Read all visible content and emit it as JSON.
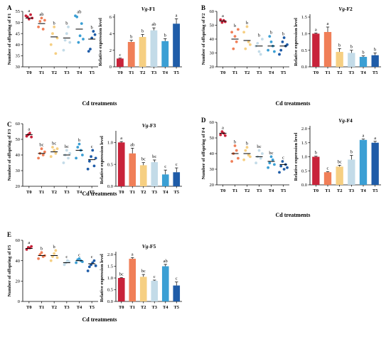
{
  "figure": {
    "palette": [
      "#c8233a",
      "#f07f58",
      "#f6cf82",
      "#c3dbe8",
      "#3b9fd4",
      "#1f5ca8"
    ],
    "panels": [
      {
        "label": "A",
        "x_title": "Cd treatments",
        "scatter": {
          "ylabel": "Number of offspring of F1",
          "ylim": [
            30,
            55
          ],
          "yticks": [
            30,
            35,
            40,
            45,
            50,
            55
          ],
          "categories": [
            "T0",
            "T1",
            "T2",
            "T3",
            "T4",
            "T5"
          ],
          "means": [
            52,
            49.5,
            43.5,
            43,
            47,
            42.5
          ],
          "points": [
            [
              53,
              52.5,
              51.5,
              53.5,
              52
            ],
            [
              48,
              50.5,
              52,
              47,
              51
            ],
            [
              40,
              45,
              48,
              36,
              43
            ],
            [
              37.5,
              42,
              45,
              48,
              41
            ],
            [
              53,
              52.5,
              41,
              44,
              49.5,
              42.5
            ],
            [
              37,
              38,
              43,
              46,
              44.5
            ]
          ],
          "sig": [
            "a",
            "ab",
            "b",
            "b",
            "ab",
            "b"
          ]
        },
        "bar": {
          "title_gene": "Vg",
          "title_suffix": "-F1",
          "ylabel": "Relative expression level",
          "ylim": [
            0,
            6
          ],
          "yticks": [
            0,
            2,
            4,
            6
          ],
          "categories": [
            "T0",
            "T1",
            "T2",
            "T3",
            "T4",
            "T5"
          ],
          "values": [
            1.0,
            3.0,
            3.6,
            4.4,
            3.1,
            5.2
          ],
          "errors": [
            0.05,
            0.2,
            0.3,
            0.3,
            0.3,
            0.6
          ],
          "sig": [
            "c",
            "b",
            "b",
            "ab",
            "b",
            "a"
          ]
        }
      },
      {
        "label": "B",
        "x_title": "Cd treatments",
        "scatter": {
          "ylabel": "Number of offspring of F2",
          "ylim": [
            20,
            60
          ],
          "yticks": [
            20,
            30,
            40,
            50,
            60
          ],
          "categories": [
            "T0",
            "T1",
            "T2",
            "T3",
            "T4",
            "T5"
          ],
          "means": [
            53,
            40,
            39,
            35,
            35,
            35
          ],
          "points": [
            [
              54,
              52,
              53.5,
              52.5
            ],
            [
              45,
              33,
              42,
              38,
              47
            ],
            [
              45,
              33,
              49,
              38,
              36
            ],
            [
              35,
              37,
              31,
              29,
              40
            ],
            [
              32,
              42,
              38,
              35,
              31
            ],
            [
              29,
              32,
              38,
              41,
              35,
              36
            ]
          ],
          "sig": [
            "a",
            "b",
            "b",
            "b",
            "b",
            "b"
          ]
        },
        "bar": {
          "title_gene": "Vg",
          "title_suffix": "-F2",
          "ylabel": "Relative expression level",
          "ylim": [
            0,
            1.5
          ],
          "yticks": [
            0.0,
            0.5,
            1.0,
            1.5
          ],
          "categories": [
            "T0",
            "T1",
            "T2",
            "T3",
            "T4",
            "T5"
          ],
          "values": [
            1.0,
            1.05,
            0.45,
            0.42,
            0.3,
            0.35
          ],
          "errors": [
            0.02,
            0.15,
            0.1,
            0.08,
            0.03,
            0.07
          ],
          "sig": [
            "a",
            "a",
            "b",
            "b",
            "b",
            "b"
          ]
        }
      },
      {
        "label": "C",
        "x_title": "Cd treatments",
        "scatter": {
          "ylabel": "Number of offspring of F3",
          "ylim": [
            20,
            60
          ],
          "yticks": [
            20,
            30,
            40,
            50,
            60
          ],
          "categories": [
            "T0",
            "T1",
            "T2",
            "T3",
            "T4",
            "T5"
          ],
          "means": [
            53,
            41,
            42,
            40,
            43,
            37
          ],
          "points": [
            [
              52,
              53,
              54,
              51.5
            ],
            [
              38,
              41,
              44,
              40,
              42
            ],
            [
              39,
              45,
              43,
              41,
              44
            ],
            [
              35,
              40,
              43,
              38,
              41
            ],
            [
              38,
              45,
              47,
              43,
              40
            ],
            [
              31,
              36,
              39,
              43,
              33,
              38
            ]
          ],
          "sig": [
            "a",
            "bc",
            "bc",
            "bc",
            "b",
            "c"
          ]
        },
        "bar": {
          "title_gene": "Vg",
          "title_suffix": "-F3",
          "ylabel": "Relative expression level",
          "ylim": [
            0,
            1.2
          ],
          "yticks": [
            0.0,
            0.5,
            1.0
          ],
          "categories": [
            "T0",
            "T1",
            "T2",
            "T3",
            "T4",
            "T5"
          ],
          "values": [
            1.0,
            0.75,
            0.48,
            0.55,
            0.27,
            0.32
          ],
          "errors": [
            0.02,
            0.12,
            0.06,
            0.05,
            0.1,
            0.1
          ],
          "sig": [
            "a",
            "ab",
            "bc",
            "bc",
            "c",
            "c"
          ]
        }
      },
      {
        "label": "D",
        "x_title": "Cd treatments",
        "scatter": {
          "ylabel": "Number of offspring of F4",
          "ylim": [
            20,
            60
          ],
          "yticks": [
            20,
            30,
            40,
            50,
            60
          ],
          "categories": [
            "T0",
            "T1",
            "T2",
            "T3",
            "T4",
            "T5"
          ],
          "means": [
            53,
            40,
            40,
            38,
            35,
            33
          ],
          "points": [
            [
              52,
              54,
              53,
              51.5
            ],
            [
              35,
              40,
              45,
              42,
              37
            ],
            [
              36,
              42,
              44,
              39,
              38
            ],
            [
              34,
              38,
              42,
              37,
              40
            ],
            [
              31,
              34,
              38,
              36,
              33
            ],
            [
              28,
              32,
              35,
              30,
              33,
              31
            ]
          ],
          "sig": [
            "a",
            "b",
            "b",
            "bc",
            "bc",
            "c"
          ]
        },
        "bar": {
          "title_gene": "Vg",
          "title_suffix": "-F4",
          "ylabel": "Relative expression level",
          "ylim": [
            0,
            2.0
          ],
          "yticks": [
            0.0,
            0.5,
            1.0,
            1.5,
            2.0
          ],
          "categories": [
            "T0",
            "T1",
            "T2",
            "T3",
            "T4",
            "T5"
          ],
          "values": [
            1.0,
            0.45,
            0.65,
            0.9,
            1.6,
            1.5
          ],
          "errors": [
            0.02,
            0.02,
            0.05,
            0.15,
            0.03,
            0.05
          ],
          "sig": [
            "b",
            "c",
            "bc",
            "b",
            "a",
            "a"
          ]
        }
      },
      {
        "label": "E",
        "x_title": "Cd treatments",
        "scatter": {
          "ylabel": "Number of offspring of F5",
          "ylim": [
            0,
            60
          ],
          "yticks": [
            0,
            20,
            40,
            60
          ],
          "categories": [
            "T0",
            "T1",
            "T2",
            "T3",
            "T4",
            "T5"
          ],
          "means": [
            52,
            45,
            45,
            38,
            40,
            37
          ],
          "points": [
            [
              51,
              53,
              52.5,
              54
            ],
            [
              42,
              46,
              48,
              44,
              45
            ],
            [
              40,
              44,
              47,
              50,
              43
            ],
            [
              36,
              38,
              40,
              39
            ],
            [
              38,
              41,
              42,
              40,
              39
            ],
            [
              30,
              34,
              36,
              38,
              40,
              35
            ]
          ],
          "sig": [
            "a",
            "b",
            "b",
            "c",
            "c",
            "c"
          ]
        },
        "bar": {
          "title_gene": "Vg",
          "title_suffix": "-F5",
          "ylabel": "Relative expression level",
          "ylim": [
            0,
            2.0
          ],
          "yticks": [
            0.0,
            0.5,
            1.0,
            1.5,
            2.0
          ],
          "categories": [
            "T0",
            "T1",
            "T2",
            "T3",
            "T4",
            "T5"
          ],
          "values": [
            1.0,
            1.82,
            1.05,
            0.88,
            1.5,
            0.68
          ],
          "errors": [
            0.02,
            0.05,
            0.1,
            0.03,
            0.08,
            0.15
          ],
          "sig": [
            "bc",
            "a",
            "bc",
            "c",
            "ab",
            "c"
          ]
        }
      }
    ]
  }
}
